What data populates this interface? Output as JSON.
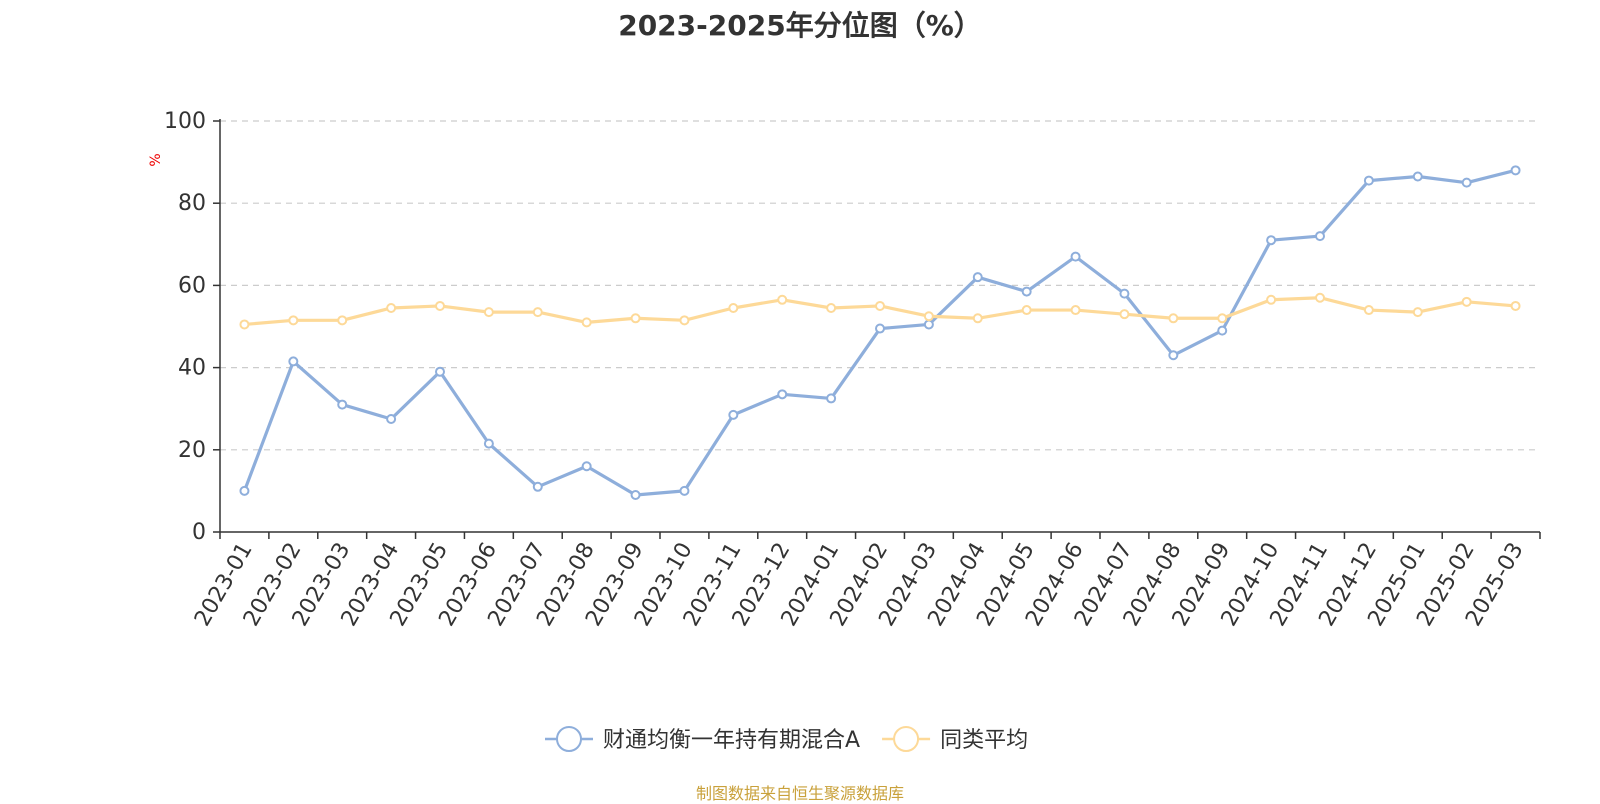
{
  "chart_data": {
    "type": "line",
    "title": "2023-2025年分位图（%）",
    "ylabel": "%",
    "xlabel": "",
    "ylim": [
      0,
      100
    ],
    "yticks": [
      0,
      20,
      40,
      60,
      80,
      100
    ],
    "grid": true,
    "legend_position": "bottom",
    "categories": [
      "2023-01",
      "2023-02",
      "2023-03",
      "2023-04",
      "2023-05",
      "2023-06",
      "2023-07",
      "2023-08",
      "2023-09",
      "2023-10",
      "2023-11",
      "2023-12",
      "2024-01",
      "2024-02",
      "2024-03",
      "2024-04",
      "2024-05",
      "2024-06",
      "2024-07",
      "2024-08",
      "2024-09",
      "2024-10",
      "2024-11",
      "2024-12",
      "2025-01",
      "2025-02",
      "2025-03"
    ],
    "series": [
      {
        "name": "财通均衡一年持有期混合A",
        "color": "#8eaedb",
        "values": [
          10,
          41.5,
          31,
          27.5,
          39,
          21.5,
          11,
          16,
          9,
          10,
          28.5,
          33.5,
          32.5,
          49.5,
          50.5,
          62,
          58.5,
          67,
          58,
          43,
          49,
          71,
          72,
          85.5,
          86.5,
          85,
          88
        ]
      },
      {
        "name": "同类平均",
        "color": "#fdd998",
        "values": [
          50.5,
          51.5,
          51.5,
          54.5,
          55,
          53.5,
          53.5,
          51,
          52,
          51.5,
          54.5,
          56.5,
          54.5,
          55,
          52.5,
          52,
          54,
          54,
          53,
          52,
          52,
          56.5,
          57,
          54,
          53.5,
          56,
          55
        ]
      }
    ]
  },
  "footer": {
    "source": "制图数据来自恒生聚源数据库"
  }
}
